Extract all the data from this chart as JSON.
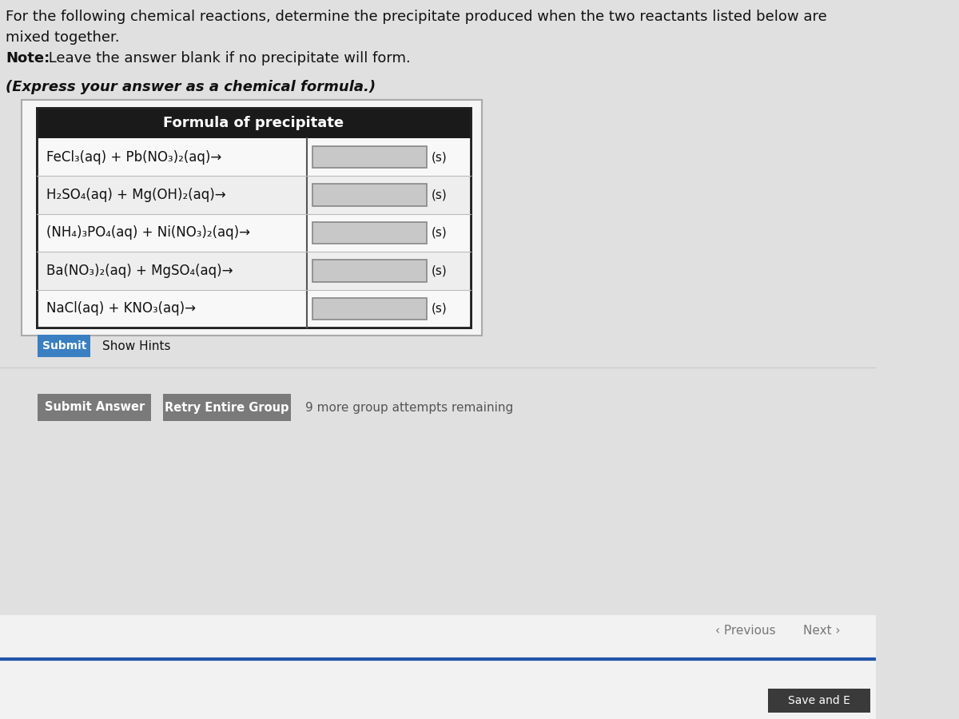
{
  "page_bg": "#e0e0e0",
  "card_bg": "#f5f5f5",
  "card_border": "#aaaaaa",
  "intro_line1": "For the following chemical reactions, determine the precipitate produced when the two reactants listed below are",
  "intro_line2": "mixed together.",
  "note_bold": "Note:",
  "note_rest": " Leave the answer blank if no precipitate will form.",
  "express_text": "(Express your answer as a chemical formula.)",
  "table_header": "Formula of precipitate",
  "reactions": [
    "FeCl₃(aq) + Pb(NO₃)₂(aq)→",
    "H₂SO₄(aq) + Mg(OH)₂(aq)→",
    "(NH₄)₃PO₄(aq) + Ni(NO₃)₂(aq)→",
    "Ba(NO₃)₂(aq) + MgSO₄(aq)→",
    "NaCl(aq) + KNO₃(aq)→"
  ],
  "header_bg": "#1a1a1a",
  "header_text_color": "#ffffff",
  "row_bg_even": "#f8f8f8",
  "row_bg_odd": "#eeeeee",
  "row_border": "#cccccc",
  "input_box_bg": "#c8c8c8",
  "input_box_border": "#888888",
  "text_color": "#111111",
  "submit_btn_bg": "#3a7fc1",
  "submit_btn_text": "Submit",
  "show_hints_text": "Show Hints",
  "bottom_btn_bg": "#7a7a7a",
  "bottom_btn_text_color": "#ffffff",
  "submit_answer_text": "Submit Answer",
  "retry_text": "Retry Entire Group",
  "attempts_text": "9 more group attempts remaining",
  "previous_text": "Previous",
  "next_text": "Next",
  "save_text": "Save and E",
  "save_btn_bg": "#3a3a3a",
  "bottom_area_bg": "#f0f0f0",
  "nav_color": "#777777"
}
